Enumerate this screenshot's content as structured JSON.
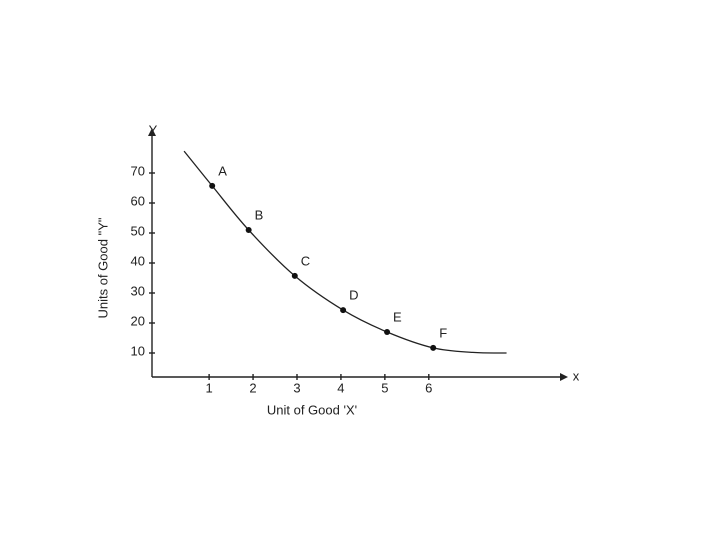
{
  "chart_data": {
    "type": "line",
    "y_label": "Units of Good \"Y\"",
    "x_label": "Unit of Good 'X'",
    "y_axis_name": "Y",
    "x_axis_name": "x",
    "xlim": [
      -0.3,
      9.1
    ],
    "ylim": [
      2,
      85
    ],
    "xticks": [
      1,
      2,
      3,
      4,
      5,
      6
    ],
    "yticks": [
      10,
      20,
      30,
      40,
      50,
      60,
      70
    ],
    "curve": {
      "color": "#222222",
      "x": [
        0.43,
        1.07,
        1.9,
        2.95,
        4.05,
        5.05,
        6.1,
        7.0,
        7.77
      ],
      "values": [
        77.3,
        65.7,
        51,
        35.7,
        24.3,
        17,
        11.7,
        10.2,
        10
      ]
    },
    "points": {
      "color": "#111111",
      "labels": [
        "A",
        "B",
        "C",
        "D",
        "E",
        "F"
      ],
      "x": [
        1.07,
        1.9,
        2.95,
        4.05,
        5.05,
        6.1
      ],
      "values": [
        65.7,
        51,
        35.7,
        24.3,
        17,
        11.7
      ]
    }
  }
}
